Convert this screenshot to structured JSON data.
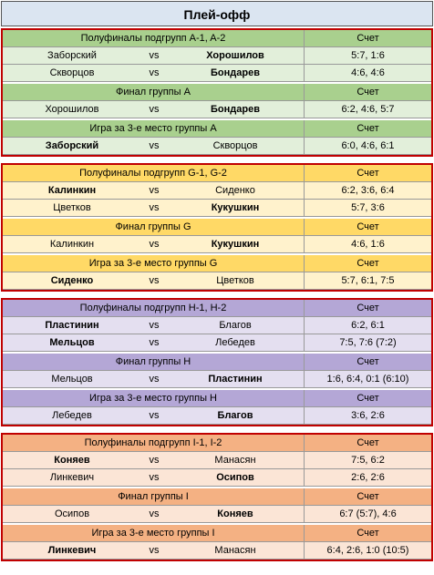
{
  "title": "Плей-офф",
  "groups": [
    {
      "sections": [
        {
          "header": "Полуфиналы подгрупп A-1, A-2",
          "score_header": "Счет",
          "matches": [
            {
              "player1": "Заборский",
              "vs": "vs",
              "player2": "Хорошилов",
              "score": "5:7, 1:6"
            },
            {
              "player1": "Скворцов",
              "vs": "vs",
              "player2": "Бондарев",
              "score": "4:6, 4:6"
            }
          ]
        },
        {
          "header": "Финал группы A",
          "score_header": "Счет",
          "matches": [
            {
              "player1": "Хорошилов",
              "vs": "vs",
              "player2": "Бондарев",
              "score": "6:2, 4:6, 5:7"
            }
          ]
        },
        {
          "header": "Игра за 3-е место группы A",
          "score_header": "Счет",
          "matches": [
            {
              "player1": "Заборский",
              "vs": "vs",
              "player2": "Скворцов",
              "score": "6:0, 4:6, 6:1"
            }
          ]
        }
      ]
    },
    {
      "sections": [
        {
          "header": "Полуфиналы подгрупп G-1, G-2",
          "score_header": "Счет",
          "matches": [
            {
              "player1": "Калинкин",
              "vs": "vs",
              "player2": "Сиденко",
              "score": "6:2, 3:6, 6:4"
            },
            {
              "player1": "Цветков",
              "vs": "vs",
              "player2": "Кукушкин",
              "score": "5:7, 3:6"
            }
          ]
        },
        {
          "header": "Финал группы G",
          "score_header": "Счет",
          "matches": [
            {
              "player1": "Калинкин",
              "vs": "vs",
              "player2": "Кукушкин",
              "score": "4:6, 1:6"
            }
          ]
        },
        {
          "header": "Игра за 3-е место группы G",
          "score_header": "Счет",
          "matches": [
            {
              "player1": "Сиденко",
              "vs": "vs",
              "player2": "Цветков",
              "score": "5:7, 6:1, 7:5"
            }
          ]
        }
      ]
    },
    {
      "sections": [
        {
          "header": "Полуфиналы подгрупп H-1, H-2",
          "score_header": "Счет",
          "matches": [
            {
              "player1": "Пластинин",
              "vs": "vs",
              "player2": "Благов",
              "score": "6:2, 6:1"
            },
            {
              "player1": "Мельцов",
              "vs": "vs",
              "player2": "Лебедев",
              "score": "7:5, 7:6 (7:2)"
            }
          ]
        },
        {
          "header": "Финал группы H",
          "score_header": "Счет",
          "matches": [
            {
              "player1": "Мельцов",
              "vs": "vs",
              "player2": "Пластинин",
              "score": "1:6, 6:4, 0:1 (6:10)"
            }
          ]
        },
        {
          "header": "Игра за 3-е место группы H",
          "score_header": "Счет",
          "matches": [
            {
              "player1": "Лебедев",
              "vs": "vs",
              "player2": "Благов",
              "score": "3:6, 2:6"
            }
          ]
        }
      ]
    },
    {
      "sections": [
        {
          "header": "Полуфиналы подгрупп I-1, I-2",
          "score_header": "Счет",
          "matches": [
            {
              "player1": "Коняев",
              "vs": "vs",
              "player2": "Манасян",
              "score": "7:5, 6:2"
            },
            {
              "player1": "Линкевич",
              "vs": "vs",
              "player2": "Осипов",
              "score": "2:6, 2:6"
            }
          ]
        },
        {
          "header": "Финал группы I",
          "score_header": "Счет",
          "matches": [
            {
              "player1": "Осипов",
              "vs": "vs",
              "player2": "Коняев",
              "score": "6:7 (5:7), 4:6"
            }
          ]
        },
        {
          "header": "Игра за 3-е место группы I",
          "score_header": "Счет",
          "matches": [
            {
              "player1": "Линкевич",
              "vs": "vs",
              "player2": "Манасян",
              "score": "6:4, 2:6, 1:0 (10:5)"
            }
          ]
        }
      ]
    }
  ]
}
